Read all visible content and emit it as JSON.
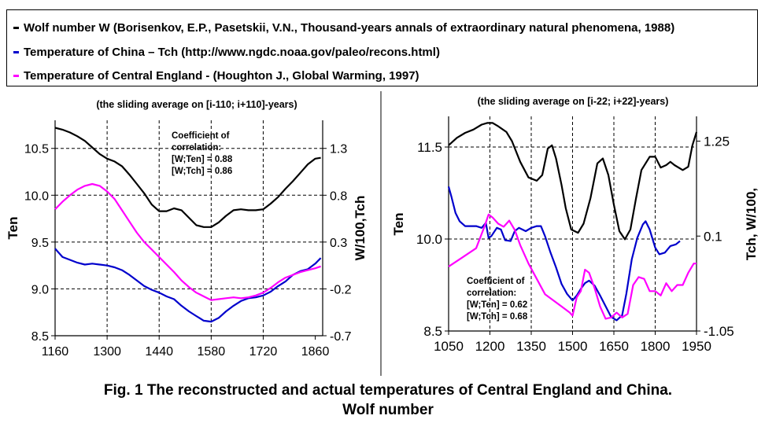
{
  "legend": {
    "items": [
      {
        "label": "Wolf number W (Borisenkov, E.P., Pasetskii, V.N., Thousand-years annals of extraordinary natural phenomena, 1988)",
        "color": "#000000"
      },
      {
        "label": "Temperature of China – Tch (http://www.ngdc.noaa.gov/paleo/recons.html)",
        "color": "#0000cc"
      },
      {
        "label": "Temperature of Central England - (Houghton J., Global Warming, 1997)",
        "color": "#ff00ff"
      }
    ]
  },
  "caption": {
    "line1": "Fig. 1 The reconstructed and actual temperatures of Central England and China.",
    "line2": "Wolf number"
  },
  "chart_data": [
    {
      "type": "line",
      "title": "(the sliding average on [i-110; i+110]-years)",
      "xlabel": "",
      "ylabel": "Ten",
      "y2label": "W/100,Tch",
      "xlim": [
        1160,
        1880
      ],
      "ylim": [
        8.5,
        10.8
      ],
      "y2lim": [
        -0.7,
        1.6
      ],
      "xticks": [
        "1160",
        "1300",
        "1440",
        "1580",
        "1720",
        "1860"
      ],
      "yticks": [
        "10.5",
        "10.0",
        "9.5",
        "9.0",
        "8.5"
      ],
      "y2ticks": [
        "1.3",
        "0.8",
        "0.3",
        "-0.2",
        "-0.7"
      ],
      "grid": true,
      "annotation": [
        "Coefficient of",
        "correlation:",
        "[W;Ten] = 0.88",
        "[W;Tch] = 0.86"
      ],
      "series": [
        {
          "axis": "y2",
          "color": "#000000",
          "x": [
            1160,
            1180,
            1200,
            1220,
            1240,
            1260,
            1280,
            1300,
            1320,
            1340,
            1360,
            1380,
            1400,
            1420,
            1440,
            1460,
            1480,
            1500,
            1520,
            1540,
            1560,
            1580,
            1600,
            1620,
            1640,
            1660,
            1680,
            1700,
            1720,
            1740,
            1760,
            1780,
            1800,
            1820,
            1840,
            1860,
            1875
          ],
          "values": [
            1.52,
            1.5,
            1.47,
            1.43,
            1.38,
            1.31,
            1.24,
            1.19,
            1.16,
            1.11,
            1.02,
            0.92,
            0.82,
            0.7,
            0.63,
            0.63,
            0.66,
            0.64,
            0.56,
            0.48,
            0.46,
            0.46,
            0.51,
            0.58,
            0.64,
            0.65,
            0.64,
            0.64,
            0.65,
            0.71,
            0.78,
            0.87,
            0.95,
            1.04,
            1.13,
            1.19,
            1.2
          ]
        },
        {
          "axis": "y2",
          "color": "#0000cc",
          "x": [
            1160,
            1180,
            1200,
            1220,
            1240,
            1260,
            1280,
            1300,
            1320,
            1340,
            1360,
            1380,
            1400,
            1420,
            1440,
            1460,
            1480,
            1500,
            1520,
            1540,
            1560,
            1580,
            1600,
            1620,
            1640,
            1660,
            1680,
            1700,
            1720,
            1740,
            1760,
            1780,
            1800,
            1820,
            1840,
            1860,
            1875
          ],
          "values": [
            0.23,
            0.14,
            0.11,
            0.08,
            0.06,
            0.07,
            0.06,
            0.05,
            0.03,
            0.0,
            -0.05,
            -0.11,
            -0.17,
            -0.21,
            -0.24,
            -0.28,
            -0.31,
            -0.38,
            -0.44,
            -0.49,
            -0.54,
            -0.55,
            -0.51,
            -0.44,
            -0.38,
            -0.33,
            -0.3,
            -0.29,
            -0.27,
            -0.23,
            -0.17,
            -0.12,
            -0.05,
            -0.01,
            0.01,
            0.07,
            0.13
          ]
        },
        {
          "axis": "y",
          "color": "#ff00ff",
          "x": [
            1160,
            1180,
            1200,
            1220,
            1240,
            1260,
            1280,
            1300,
            1320,
            1340,
            1360,
            1380,
            1400,
            1420,
            1440,
            1460,
            1480,
            1500,
            1520,
            1540,
            1560,
            1580,
            1600,
            1620,
            1640,
            1660,
            1680,
            1700,
            1720,
            1740,
            1760,
            1780,
            1800,
            1820,
            1840,
            1860,
            1875
          ],
          "values": [
            9.85,
            9.93,
            10.0,
            10.06,
            10.1,
            10.12,
            10.1,
            10.04,
            9.96,
            9.84,
            9.72,
            9.6,
            9.5,
            9.42,
            9.34,
            9.26,
            9.18,
            9.09,
            9.02,
            8.96,
            8.92,
            8.88,
            8.89,
            8.9,
            8.91,
            8.9,
            8.91,
            8.93,
            8.96,
            9.01,
            9.07,
            9.12,
            9.15,
            9.18,
            9.2,
            9.22,
            9.24
          ]
        }
      ]
    },
    {
      "type": "line",
      "title": "(the sliding average on [i-22; i+22]-years)",
      "xlabel": "",
      "ylabel": "Ten",
      "y2label": "Tch, W/100,",
      "xlim": [
        1050,
        1950
      ],
      "ylim": [
        8.5,
        12.0
      ],
      "y2lim": [
        -1.05,
        1.55
      ],
      "xticks": [
        "1050",
        "1200",
        "1350",
        "1500",
        "1650",
        "1800",
        "1950"
      ],
      "yticks": [
        "11.5",
        "10.0",
        "8.5"
      ],
      "y2ticks": [
        "1.25",
        "0.1",
        "-1.05"
      ],
      "grid": true,
      "annotation": [
        "Coefficient of",
        "correlation:",
        "[W;Ten] = 0.62",
        "[W;Tch] = 0.68"
      ],
      "series": [
        {
          "axis": "y2",
          "color": "#000000",
          "x": [
            1050,
            1080,
            1110,
            1140,
            1170,
            1190,
            1210,
            1230,
            1260,
            1280,
            1310,
            1340,
            1370,
            1390,
            1410,
            1425,
            1440,
            1460,
            1475,
            1495,
            1520,
            1540,
            1565,
            1590,
            1610,
            1630,
            1650,
            1670,
            1690,
            1710,
            1730,
            1750,
            1780,
            1800,
            1820,
            1840,
            1855,
            1870,
            1900,
            1920,
            1935,
            1950
          ],
          "values": [
            1.2,
            1.29,
            1.35,
            1.39,
            1.45,
            1.47,
            1.47,
            1.43,
            1.36,
            1.25,
            1.0,
            0.81,
            0.77,
            0.84,
            1.16,
            1.2,
            1.04,
            0.72,
            0.44,
            0.18,
            0.14,
            0.25,
            0.56,
            0.98,
            1.04,
            0.84,
            0.48,
            0.16,
            0.06,
            0.18,
            0.55,
            0.9,
            1.06,
            1.06,
            0.93,
            0.96,
            1.0,
            0.96,
            0.9,
            0.94,
            1.2,
            1.36
          ]
        },
        {
          "axis": "y2",
          "color": "#0000cc",
          "x": [
            1050,
            1060,
            1075,
            1090,
            1110,
            1130,
            1150,
            1170,
            1185,
            1195,
            1205,
            1225,
            1240,
            1255,
            1275,
            1290,
            1305,
            1330,
            1350,
            1370,
            1385,
            1400,
            1420,
            1440,
            1460,
            1480,
            1500,
            1515,
            1530,
            1545,
            1560,
            1580,
            1600,
            1620,
            1640,
            1660,
            1680,
            1695,
            1715,
            1735,
            1755,
            1765,
            1780,
            1800,
            1815,
            1835,
            1855,
            1875,
            1890
          ],
          "values": [
            0.7,
            0.58,
            0.38,
            0.28,
            0.22,
            0.22,
            0.22,
            0.2,
            0.26,
            0.08,
            0.1,
            0.2,
            0.18,
            0.05,
            0.04,
            0.16,
            0.2,
            0.16,
            0.2,
            0.22,
            0.22,
            0.1,
            -0.1,
            -0.28,
            -0.48,
            -0.6,
            -0.68,
            -0.62,
            -0.54,
            -0.47,
            -0.44,
            -0.5,
            -0.62,
            -0.75,
            -0.88,
            -0.92,
            -0.86,
            -0.6,
            -0.18,
            0.08,
            0.24,
            0.28,
            0.18,
            -0.04,
            -0.12,
            -0.1,
            -0.02,
            0.0,
            0.04
          ]
        },
        {
          "axis": "y",
          "color": "#ff00ff",
          "x": [
            1050,
            1100,
            1150,
            1180,
            1195,
            1210,
            1230,
            1250,
            1270,
            1290,
            1310,
            1340,
            1370,
            1400,
            1430,
            1460,
            1490,
            1500,
            1515,
            1530,
            1545,
            1560,
            1580,
            1600,
            1620,
            1640,
            1660,
            1680,
            1700,
            1720,
            1740,
            1760,
            1780,
            1800,
            1820,
            1840,
            1860,
            1880,
            1900,
            1920,
            1940,
            1950
          ],
          "values": [
            9.55,
            9.7,
            9.85,
            10.2,
            10.4,
            10.35,
            10.25,
            10.2,
            10.3,
            10.15,
            9.9,
            9.6,
            9.35,
            9.1,
            9.0,
            8.9,
            8.8,
            8.75,
            9.05,
            9.15,
            9.5,
            9.45,
            9.2,
            8.9,
            8.7,
            8.72,
            8.8,
            8.72,
            8.78,
            9.25,
            9.38,
            9.35,
            9.15,
            9.15,
            9.08,
            9.28,
            9.15,
            9.25,
            9.25,
            9.45,
            9.6,
            9.6
          ]
        }
      ]
    }
  ]
}
